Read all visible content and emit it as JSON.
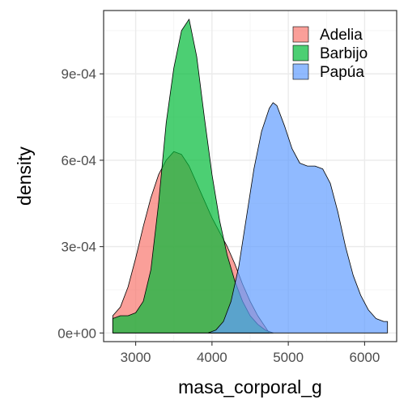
{
  "chart_data": {
    "type": "area",
    "subtype": "density",
    "title": "",
    "xlabel": "masa_corporal_g",
    "ylabel": "density",
    "xlim": [
      2580,
      6420
    ],
    "ylim": [
      -3e-05,
      0.00112
    ],
    "x_ticks": [
      3000,
      4000,
      5000,
      6000
    ],
    "x_tick_labels": [
      "3000",
      "4000",
      "5000",
      "6000"
    ],
    "y_ticks": [
      0,
      0.0003,
      0.0006,
      0.0009
    ],
    "y_tick_labels": [
      "0e+00",
      "3e-04",
      "6e-04",
      "9e-04"
    ],
    "grid": true,
    "legend_position": "top-right",
    "series": [
      {
        "name": "Adelia",
        "color": "#F8766D",
        "x": [
          2700,
          2800,
          2900,
          3000,
          3100,
          3200,
          3300,
          3400,
          3500,
          3600,
          3700,
          3800,
          3900,
          4000,
          4100,
          4200,
          4300,
          4400,
          4500,
          4600,
          4700,
          4750
        ],
        "y": [
          6e-05,
          9e-05,
          0.00016,
          0.00026,
          0.00037,
          0.00047,
          0.00055,
          0.0006,
          0.00063,
          0.00062,
          0.00058,
          0.00052,
          0.00046,
          0.0004,
          0.00035,
          0.0003,
          0.00024,
          0.00017,
          0.00011,
          6e-05,
          2e-05,
          0.0
        ]
      },
      {
        "name": "Barbijo",
        "color": "#00BA38",
        "x": [
          2700,
          2800,
          2900,
          3000,
          3100,
          3200,
          3300,
          3400,
          3500,
          3600,
          3700,
          3800,
          3900,
          4000,
          4100,
          4200,
          4300,
          4400,
          4500,
          4600,
          4700,
          4800
        ],
        "y": [
          5e-05,
          6e-05,
          6e-05,
          7e-05,
          0.00011,
          0.00022,
          0.00045,
          0.00073,
          0.00092,
          0.00105,
          0.00109,
          0.00096,
          0.00075,
          0.00055,
          0.00039,
          0.00027,
          0.00018,
          0.00011,
          6e-05,
          3e-05,
          1e-05,
          0.0
        ]
      },
      {
        "name": "Papúa",
        "color": "#619CFF",
        "x": [
          3950,
          4050,
          4150,
          4250,
          4350,
          4450,
          4550,
          4650,
          4750,
          4800,
          4850,
          4950,
          5050,
          5150,
          5250,
          5350,
          5450,
          5550,
          5650,
          5750,
          5850,
          5950,
          6050,
          6150,
          6250,
          6300
        ],
        "y": [
          0.0,
          1e-05,
          4e-05,
          0.00011,
          0.00023,
          0.0004,
          0.00057,
          0.0007,
          0.00078,
          0.0008,
          0.00079,
          0.00072,
          0.00064,
          0.00059,
          0.00058,
          0.00058,
          0.00057,
          0.00052,
          0.00042,
          0.0003,
          0.0002,
          0.00013,
          8e-05,
          5e-05,
          4e-05,
          4e-05
        ]
      }
    ]
  }
}
